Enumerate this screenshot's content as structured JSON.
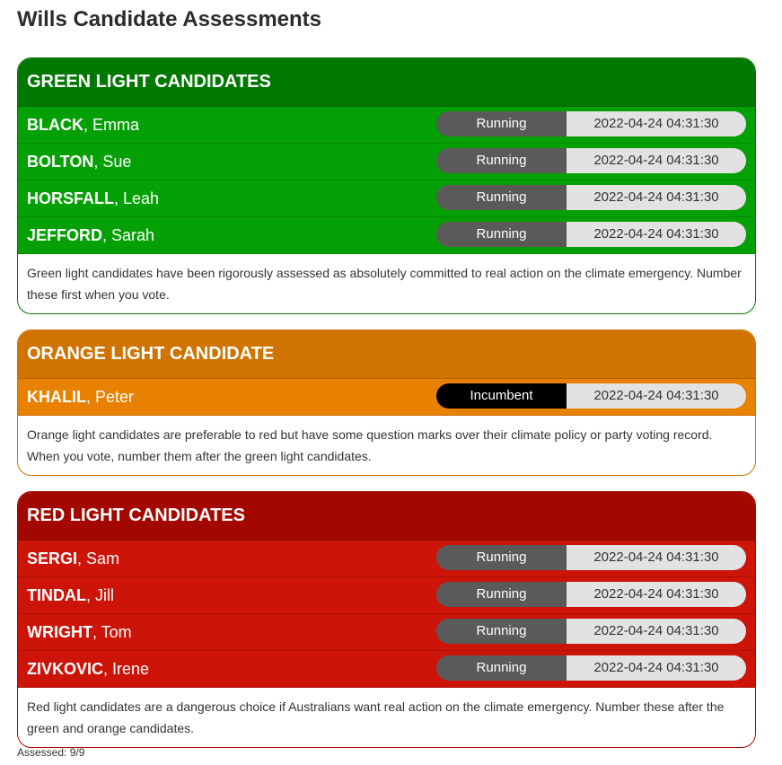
{
  "title": "Wills Candidate Assessments",
  "groups": [
    {
      "key": "green",
      "heading": "GREEN LIGHT CANDIDATES",
      "header_color": "#027802",
      "row_color": "#05a005",
      "candidates": [
        {
          "surname": "BLACK",
          "given": ", Emma",
          "status": "Running",
          "date": "2022-04-24 04:31:30"
        },
        {
          "surname": "BOLTON",
          "given": ", Sue",
          "status": "Running",
          "date": "2022-04-24 04:31:30"
        },
        {
          "surname": "HORSFALL",
          "given": ", Leah",
          "status": "Running",
          "date": "2022-04-24 04:31:30"
        },
        {
          "surname": "JEFFORD",
          "given": ", Sarah",
          "status": "Running",
          "date": "2022-04-24 04:31:30"
        }
      ],
      "description": "Green light candidates have been rigorously assessed as absolutely committed to real action on the climate emergency. Number these first when you vote."
    },
    {
      "key": "orange",
      "heading": "ORANGE LIGHT CANDIDATE",
      "header_color": "#d07300",
      "row_color": "#e88000",
      "candidates": [
        {
          "surname": "KHALIL",
          "given": ", Peter",
          "status": "Incumbent",
          "date": "2022-04-24 04:31:30"
        }
      ],
      "description": "Orange light candidates are preferable to red but have some question marks over their climate policy or party voting record. When you vote, number them after the green light candidates."
    },
    {
      "key": "red",
      "heading": "RED LIGHT CANDIDATES",
      "header_color": "#a30800",
      "row_color": "#cc1409",
      "candidates": [
        {
          "surname": "SERGI",
          "given": ", Sam",
          "status": "Running",
          "date": "2022-04-24 04:31:30"
        },
        {
          "surname": "TINDAL",
          "given": ", Jill",
          "status": "Running",
          "date": "2022-04-24 04:31:30"
        },
        {
          "surname": "WRIGHT",
          "given": ", Tom",
          "status": "Running",
          "date": "2022-04-24 04:31:30"
        },
        {
          "surname": "ZIVKOVIC",
          "given": ", Irene",
          "status": "Running",
          "date": "2022-04-24 04:31:30"
        }
      ],
      "description": "Red light candidates are a dangerous choice if Australians want real action on the climate emergency. Number these after the green and orange candidates."
    }
  ],
  "status_colors": {
    "Running": "#5a5a5a",
    "Incumbent": "#000000"
  },
  "assessed": "Assessed: 9/9"
}
